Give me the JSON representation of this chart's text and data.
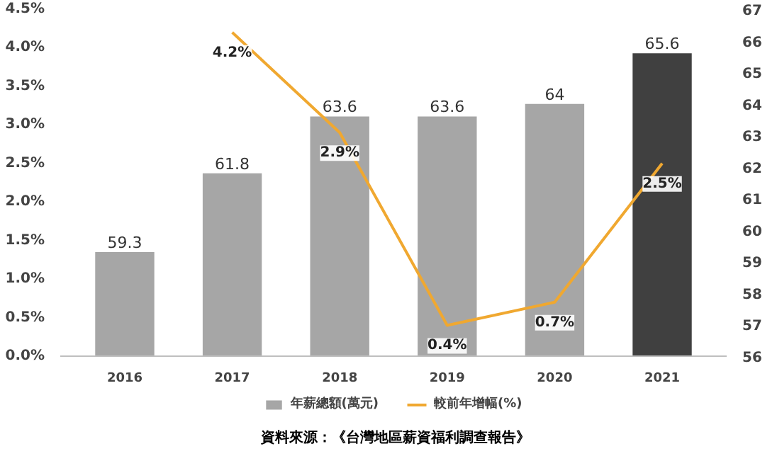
{
  "chart_data": {
    "type": "bar",
    "categories": [
      "2016",
      "2017",
      "2018",
      "2019",
      "2020",
      "2021"
    ],
    "series": [
      {
        "name": "年薪總額(萬元)",
        "axis": "y2",
        "color": "#a6a6a6",
        "colors": [
          "#a6a6a6",
          "#a6a6a6",
          "#a6a6a6",
          "#a6a6a6",
          "#a6a6a6",
          "#404040"
        ],
        "values": [
          59.3,
          61.8,
          63.6,
          63.6,
          64,
          65.6
        ],
        "value_labels": [
          "59.3",
          "61.8",
          "63.6",
          "63.6",
          "64",
          "65.6"
        ]
      },
      {
        "name": "較前年增幅(%)",
        "type": "line",
        "axis": "y",
        "color": "#f0a830",
        "values": [
          null,
          4.2,
          2.9,
          0.4,
          0.7,
          2.5
        ],
        "value_labels": [
          null,
          "4.2%",
          "2.9%",
          "0.4%",
          "0.7%",
          "2.5%"
        ]
      }
    ],
    "ylim": [
      0,
      4.5
    ],
    "yticks": [
      {
        "value": 0,
        "label": "0.0%"
      },
      {
        "value": 0.5,
        "label": "0.5%"
      },
      {
        "value": 1,
        "label": "1.0%"
      },
      {
        "value": 1.5,
        "label": "1.5%"
      },
      {
        "value": 2,
        "label": "2.0%"
      },
      {
        "value": 2.5,
        "label": "2.5%"
      },
      {
        "value": 3,
        "label": "3.0%"
      },
      {
        "value": 3.5,
        "label": "3.5%"
      },
      {
        "value": 4,
        "label": "4.0%"
      },
      {
        "value": 4.5,
        "label": "4.5%"
      }
    ],
    "y2lim": [
      56,
      67
    ],
    "y2ticks": [
      56,
      57,
      58,
      59,
      60,
      61,
      62,
      63,
      64,
      65,
      66,
      67
    ],
    "legend": "bottom",
    "grid": false,
    "marker": "none",
    "line_style": "solid",
    "annotations": [
      "資料來源：《台灣地區薪資福利調查報告》"
    ]
  }
}
